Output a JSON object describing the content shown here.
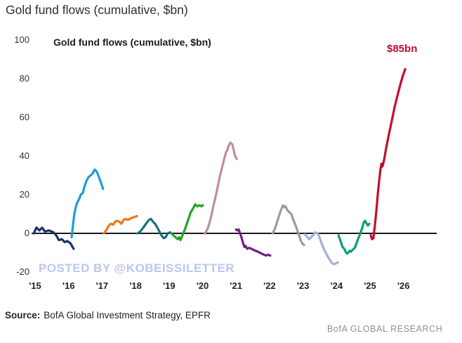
{
  "page_title": "Gold fund flows (cumulative, $bn)",
  "watermark": "POSTED BY @KOBEISSILETTER",
  "source": {
    "label": "Source:",
    "text": "BofA Global Investment Strategy, EPFR"
  },
  "branding": "BofA GLOBAL RESEARCH",
  "chart_data": {
    "type": "line",
    "title": "Gold fund flows (cumulative, $bn)",
    "xlabel": "",
    "ylabel": "",
    "ylim": [
      -20,
      100
    ],
    "xlim": [
      14.9,
      26.3
    ],
    "grid": false,
    "legend": "none",
    "y_ticks": [
      -20,
      0,
      20,
      40,
      60,
      80,
      100
    ],
    "x_tick_labels": [
      "'15",
      "'16",
      "'17",
      "'18",
      "'19",
      "'20",
      "'21",
      "'22",
      "'23",
      "'24",
      "'25",
      "'26"
    ],
    "x_tick_years": [
      15,
      16,
      17,
      18,
      19,
      20,
      21,
      22,
      23,
      24,
      25,
      26
    ],
    "zero_line_color": "#1a1a1a",
    "annotation": {
      "text": "$85bn",
      "color": "#c30d2e",
      "at_year": 26.05,
      "at_value": 85
    },
    "series": [
      {
        "name": "2015",
        "color": "#1b3169",
        "points": [
          [
            14.96,
            0
          ],
          [
            15.04,
            3
          ],
          [
            15.13,
            1.5
          ],
          [
            15.21,
            3
          ],
          [
            15.29,
            1
          ],
          [
            15.42,
            1.5
          ],
          [
            15.55,
            0.5
          ],
          [
            15.63,
            -1
          ],
          [
            15.71,
            -3.5
          ],
          [
            15.8,
            -3
          ],
          [
            15.88,
            -4.5
          ],
          [
            15.96,
            -4
          ],
          [
            16.05,
            -5
          ],
          [
            16.15,
            -8
          ]
        ]
      },
      {
        "name": "2016",
        "color": "#1d9cd8",
        "points": [
          [
            16.09,
            -2
          ],
          [
            16.13,
            4
          ],
          [
            16.17,
            10
          ],
          [
            16.22,
            14
          ],
          [
            16.26,
            16
          ],
          [
            16.32,
            18
          ],
          [
            16.36,
            20
          ],
          [
            16.43,
            21
          ],
          [
            16.47,
            24
          ],
          [
            16.53,
            27
          ],
          [
            16.59,
            29
          ],
          [
            16.66,
            30
          ],
          [
            16.72,
            31
          ],
          [
            16.78,
            33
          ],
          [
            16.84,
            32
          ],
          [
            16.91,
            29
          ],
          [
            16.97,
            26
          ],
          [
            17.03,
            23
          ]
        ]
      },
      {
        "name": "2017",
        "color": "#e8791a",
        "points": [
          [
            17.05,
            0
          ],
          [
            17.14,
            2
          ],
          [
            17.2,
            4
          ],
          [
            17.26,
            5
          ],
          [
            17.33,
            4.5
          ],
          [
            17.39,
            6
          ],
          [
            17.45,
            6.5
          ],
          [
            17.52,
            6
          ],
          [
            17.58,
            5
          ],
          [
            17.64,
            7
          ],
          [
            17.7,
            7.5
          ],
          [
            17.77,
            7
          ],
          [
            17.83,
            7.5
          ],
          [
            17.89,
            8
          ],
          [
            17.98,
            8.5
          ],
          [
            18.04,
            9
          ]
        ]
      },
      {
        "name": "2018",
        "color": "#17707d",
        "points": [
          [
            18.06,
            0
          ],
          [
            18.14,
            1
          ],
          [
            18.23,
            3
          ],
          [
            18.31,
            5
          ],
          [
            18.4,
            7
          ],
          [
            18.46,
            7.5
          ],
          [
            18.52,
            6
          ],
          [
            18.58,
            5
          ],
          [
            18.65,
            3
          ],
          [
            18.71,
            1
          ],
          [
            18.77,
            -1
          ],
          [
            18.84,
            -2.5
          ],
          [
            18.9,
            -2
          ],
          [
            18.96,
            0
          ],
          [
            19.03,
            0.5
          ],
          [
            19.07,
            0
          ]
        ]
      },
      {
        "name": "2019",
        "color": "#27a228",
        "points": [
          [
            19.07,
            0
          ],
          [
            19.13,
            -1
          ],
          [
            19.19,
            -2
          ],
          [
            19.26,
            -3
          ],
          [
            19.3,
            -2
          ],
          [
            19.34,
            -3.5
          ],
          [
            19.4,
            -1
          ],
          [
            19.47,
            2
          ],
          [
            19.53,
            5
          ],
          [
            19.59,
            8
          ],
          [
            19.65,
            11
          ],
          [
            19.72,
            13
          ],
          [
            19.78,
            15
          ],
          [
            19.84,
            14
          ],
          [
            19.91,
            14.5
          ],
          [
            19.97,
            14
          ],
          [
            20.01,
            14.5
          ]
        ]
      },
      {
        "name": "2020",
        "color": "#c08ca4",
        "points": [
          [
            20.07,
            0
          ],
          [
            20.14,
            2
          ],
          [
            20.2,
            5
          ],
          [
            20.26,
            9
          ],
          [
            20.32,
            14
          ],
          [
            20.39,
            19
          ],
          [
            20.45,
            24
          ],
          [
            20.51,
            29
          ],
          [
            20.58,
            34
          ],
          [
            20.64,
            38
          ],
          [
            20.7,
            42
          ],
          [
            20.74,
            43
          ],
          [
            20.77,
            45
          ],
          [
            20.83,
            47
          ],
          [
            20.89,
            46
          ],
          [
            20.93,
            43
          ],
          [
            20.97,
            40
          ],
          [
            21.02,
            38.5
          ]
        ]
      },
      {
        "name": "2021",
        "color": "#701f85",
        "points": [
          [
            21.0,
            2
          ],
          [
            21.04,
            1.5
          ],
          [
            21.08,
            2
          ],
          [
            21.12,
            0
          ],
          [
            21.16,
            -2
          ],
          [
            21.21,
            -5
          ],
          [
            21.25,
            -7
          ],
          [
            21.29,
            -6.5
          ],
          [
            21.33,
            -8
          ],
          [
            21.39,
            -7.5
          ],
          [
            21.46,
            -8
          ],
          [
            21.52,
            -8.5
          ],
          [
            21.58,
            -9
          ],
          [
            21.65,
            -9.5
          ],
          [
            21.71,
            -10
          ],
          [
            21.77,
            -10.5
          ],
          [
            21.83,
            -11
          ],
          [
            21.9,
            -11.5
          ],
          [
            21.96,
            -11
          ],
          [
            22.02,
            -11.5
          ]
        ]
      },
      {
        "name": "2022",
        "color": "#9b9b9b",
        "points": [
          [
            22.09,
            0
          ],
          [
            22.15,
            2
          ],
          [
            22.21,
            5
          ],
          [
            22.28,
            9
          ],
          [
            22.34,
            12
          ],
          [
            22.4,
            14.5
          ],
          [
            22.44,
            13.5
          ],
          [
            22.48,
            14
          ],
          [
            22.53,
            12
          ],
          [
            22.59,
            11
          ],
          [
            22.65,
            10
          ],
          [
            22.71,
            7
          ],
          [
            22.78,
            4
          ],
          [
            22.84,
            1
          ],
          [
            22.9,
            -2
          ],
          [
            22.94,
            -4
          ],
          [
            22.99,
            -5.5
          ],
          [
            23.03,
            -6
          ]
        ]
      },
      {
        "name": "2023",
        "color": "#a2afd7",
        "points": [
          [
            23.05,
            -0.5
          ],
          [
            23.11,
            -1.5
          ],
          [
            23.18,
            -3
          ],
          [
            23.24,
            -2
          ],
          [
            23.3,
            -1
          ],
          [
            23.36,
            0.5
          ],
          [
            23.43,
            0
          ],
          [
            23.49,
            -2
          ],
          [
            23.55,
            -5
          ],
          [
            23.62,
            -8
          ],
          [
            23.68,
            -10
          ],
          [
            23.74,
            -12
          ],
          [
            23.81,
            -14
          ],
          [
            23.87,
            -15.5
          ],
          [
            23.93,
            -16
          ],
          [
            23.99,
            -15.5
          ],
          [
            24.04,
            -15
          ]
        ]
      },
      {
        "name": "2024",
        "color": "#129b77",
        "points": [
          [
            24.06,
            -1
          ],
          [
            24.1,
            -3
          ],
          [
            24.14,
            -5
          ],
          [
            24.18,
            -7
          ],
          [
            24.23,
            -8
          ],
          [
            24.27,
            -9.5
          ],
          [
            24.31,
            -10.5
          ],
          [
            24.35,
            -10
          ],
          [
            24.39,
            -9
          ],
          [
            24.43,
            -9.5
          ],
          [
            24.48,
            -8.5
          ],
          [
            24.52,
            -8
          ],
          [
            24.56,
            -7
          ],
          [
            24.6,
            -5
          ],
          [
            24.64,
            -3
          ],
          [
            24.69,
            -1
          ],
          [
            24.73,
            1
          ],
          [
            24.77,
            3
          ],
          [
            24.81,
            5.5
          ],
          [
            24.85,
            6.5
          ],
          [
            24.9,
            5
          ],
          [
            24.94,
            4
          ],
          [
            24.98,
            5
          ]
        ]
      },
      {
        "name": "2025",
        "color": "#c30d2e",
        "points": [
          [
            25.02,
            -1
          ],
          [
            25.06,
            -3
          ],
          [
            25.1,
            -2.5
          ],
          [
            25.15,
            5
          ],
          [
            25.19,
            12
          ],
          [
            25.23,
            20
          ],
          [
            25.27,
            27
          ],
          [
            25.31,
            33
          ],
          [
            25.34,
            36
          ],
          [
            25.36,
            34.5
          ],
          [
            25.38,
            35
          ],
          [
            25.42,
            38
          ],
          [
            25.48,
            44
          ],
          [
            25.55,
            50
          ],
          [
            25.61,
            55
          ],
          [
            25.67,
            60
          ],
          [
            25.73,
            65
          ],
          [
            25.8,
            70
          ],
          [
            25.86,
            74
          ],
          [
            25.92,
            78
          ],
          [
            25.99,
            82
          ],
          [
            26.05,
            85
          ]
        ]
      }
    ]
  }
}
